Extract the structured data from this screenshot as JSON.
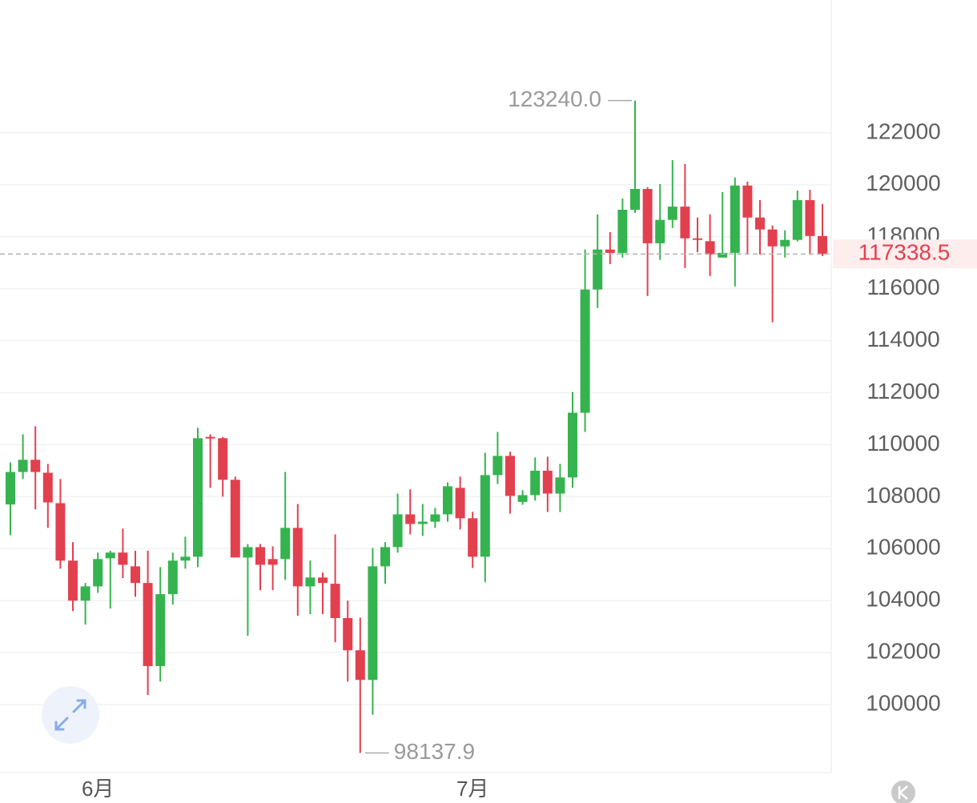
{
  "chart_data": {
    "type": "candlestick",
    "categories": [
      null,
      null,
      null,
      null,
      null,
      null,
      null,
      "6月",
      null,
      null,
      null,
      null,
      null,
      null,
      null,
      null,
      null,
      null,
      null,
      null,
      null,
      null,
      null,
      null,
      null,
      null,
      null,
      null,
      null,
      null,
      null,
      null,
      null,
      null,
      null,
      null,
      null,
      "7月",
      null,
      null,
      null,
      null,
      null,
      null,
      null,
      null,
      null,
      null,
      null,
      null,
      null,
      null,
      null,
      null,
      null,
      null,
      null,
      null,
      null,
      null,
      null,
      null,
      null,
      null,
      null,
      null
    ],
    "open": [
      107700,
      108950,
      109420,
      108920,
      107750,
      105540,
      104000,
      104550,
      105630,
      105850,
      105320,
      104680,
      101480,
      104250,
      105540,
      105690,
      110300,
      110250,
      108650,
      105660,
      106060,
      105600,
      105600,
      106800,
      104550,
      104890,
      104650,
      103330,
      102090,
      100950,
      105320,
      106060,
      107320,
      106950,
      107040,
      107320,
      108340,
      107170,
      105690,
      108830,
      109570,
      107800,
      108060,
      109000,
      108120,
      108740,
      111230,
      115970,
      117510,
      117380,
      119040,
      119840,
      117750,
      118650,
      119160,
      117940,
      117830,
      117200,
      117380,
      119970,
      118740,
      118280,
      117630,
      117880,
      119410,
      118030
    ],
    "high": [
      109320,
      110400,
      110710,
      109260,
      108680,
      106250,
      104680,
      105850,
      105920,
      106770,
      105920,
      105920,
      105290,
      105850,
      106460,
      110650,
      110400,
      110300,
      108770,
      106180,
      106180,
      106090,
      108950,
      107720,
      105540,
      105080,
      106550,
      104000,
      103350,
      106030,
      106250,
      108120,
      108280,
      107720,
      107570,
      108550,
      108770,
      107420,
      109690,
      110490,
      109730,
      108250,
      109510,
      109540,
      109260,
      112030,
      117510,
      118860,
      118180,
      119470,
      123240,
      119910,
      120030,
      120950,
      120800,
      118740,
      118860,
      119720,
      120280,
      120120,
      119410,
      118430,
      118250,
      119780,
      119810,
      119260
    ],
    "low": [
      106520,
      108680,
      107510,
      106800,
      105230,
      103600,
      103080,
      104300,
      103700,
      104870,
      104150,
      100370,
      100890,
      103850,
      105230,
      105290,
      108340,
      108000,
      105660,
      102650,
      104400,
      104400,
      104800,
      103420,
      103480,
      103480,
      102400,
      100890,
      98137.9,
      99610,
      104650,
      105850,
      106550,
      106490,
      106800,
      107040,
      106740,
      105260,
      104710,
      108490,
      107350,
      107690,
      107850,
      107410,
      107410,
      108340,
      110490,
      115260,
      116950,
      117200,
      118920,
      115720,
      117110,
      118340,
      116800,
      117410,
      116490,
      117200,
      116090,
      117320,
      117320,
      114710,
      117200,
      117820,
      117320,
      117260
    ],
    "close": [
      108950,
      109420,
      108950,
      107780,
      105540,
      104000,
      104550,
      105600,
      105850,
      105380,
      104680,
      101480,
      104250,
      105540,
      105690,
      110250,
      110250,
      108650,
      105660,
      106060,
      105380,
      105380,
      106800,
      104550,
      104890,
      104680,
      103330,
      102090,
      100950,
      105320,
      106060,
      107320,
      106950,
      107040,
      107320,
      108400,
      107170,
      105690,
      108830,
      109570,
      108030,
      108060,
      109000,
      108120,
      108740,
      111230,
      115970,
      117510,
      117380,
      119040,
      119840,
      117750,
      118650,
      119160,
      117940,
      117880,
      117320,
      117380,
      119970,
      118740,
      118280,
      117630,
      117880,
      119410,
      118030,
      117338.5
    ],
    "up_color": "#35b34f",
    "down_color": "#e3404f",
    "ylim": [
      97385,
      127110
    ],
    "yticks": [
      100000,
      102000,
      104000,
      106000,
      108000,
      110000,
      112000,
      114000,
      116000,
      118000,
      120000,
      122000
    ],
    "grid": true,
    "last_price": 117338.5,
    "high_label": {
      "value": 123240,
      "label": "123240.0"
    },
    "low_label": {
      "value": 98137.9,
      "label": "98137.9"
    }
  }
}
